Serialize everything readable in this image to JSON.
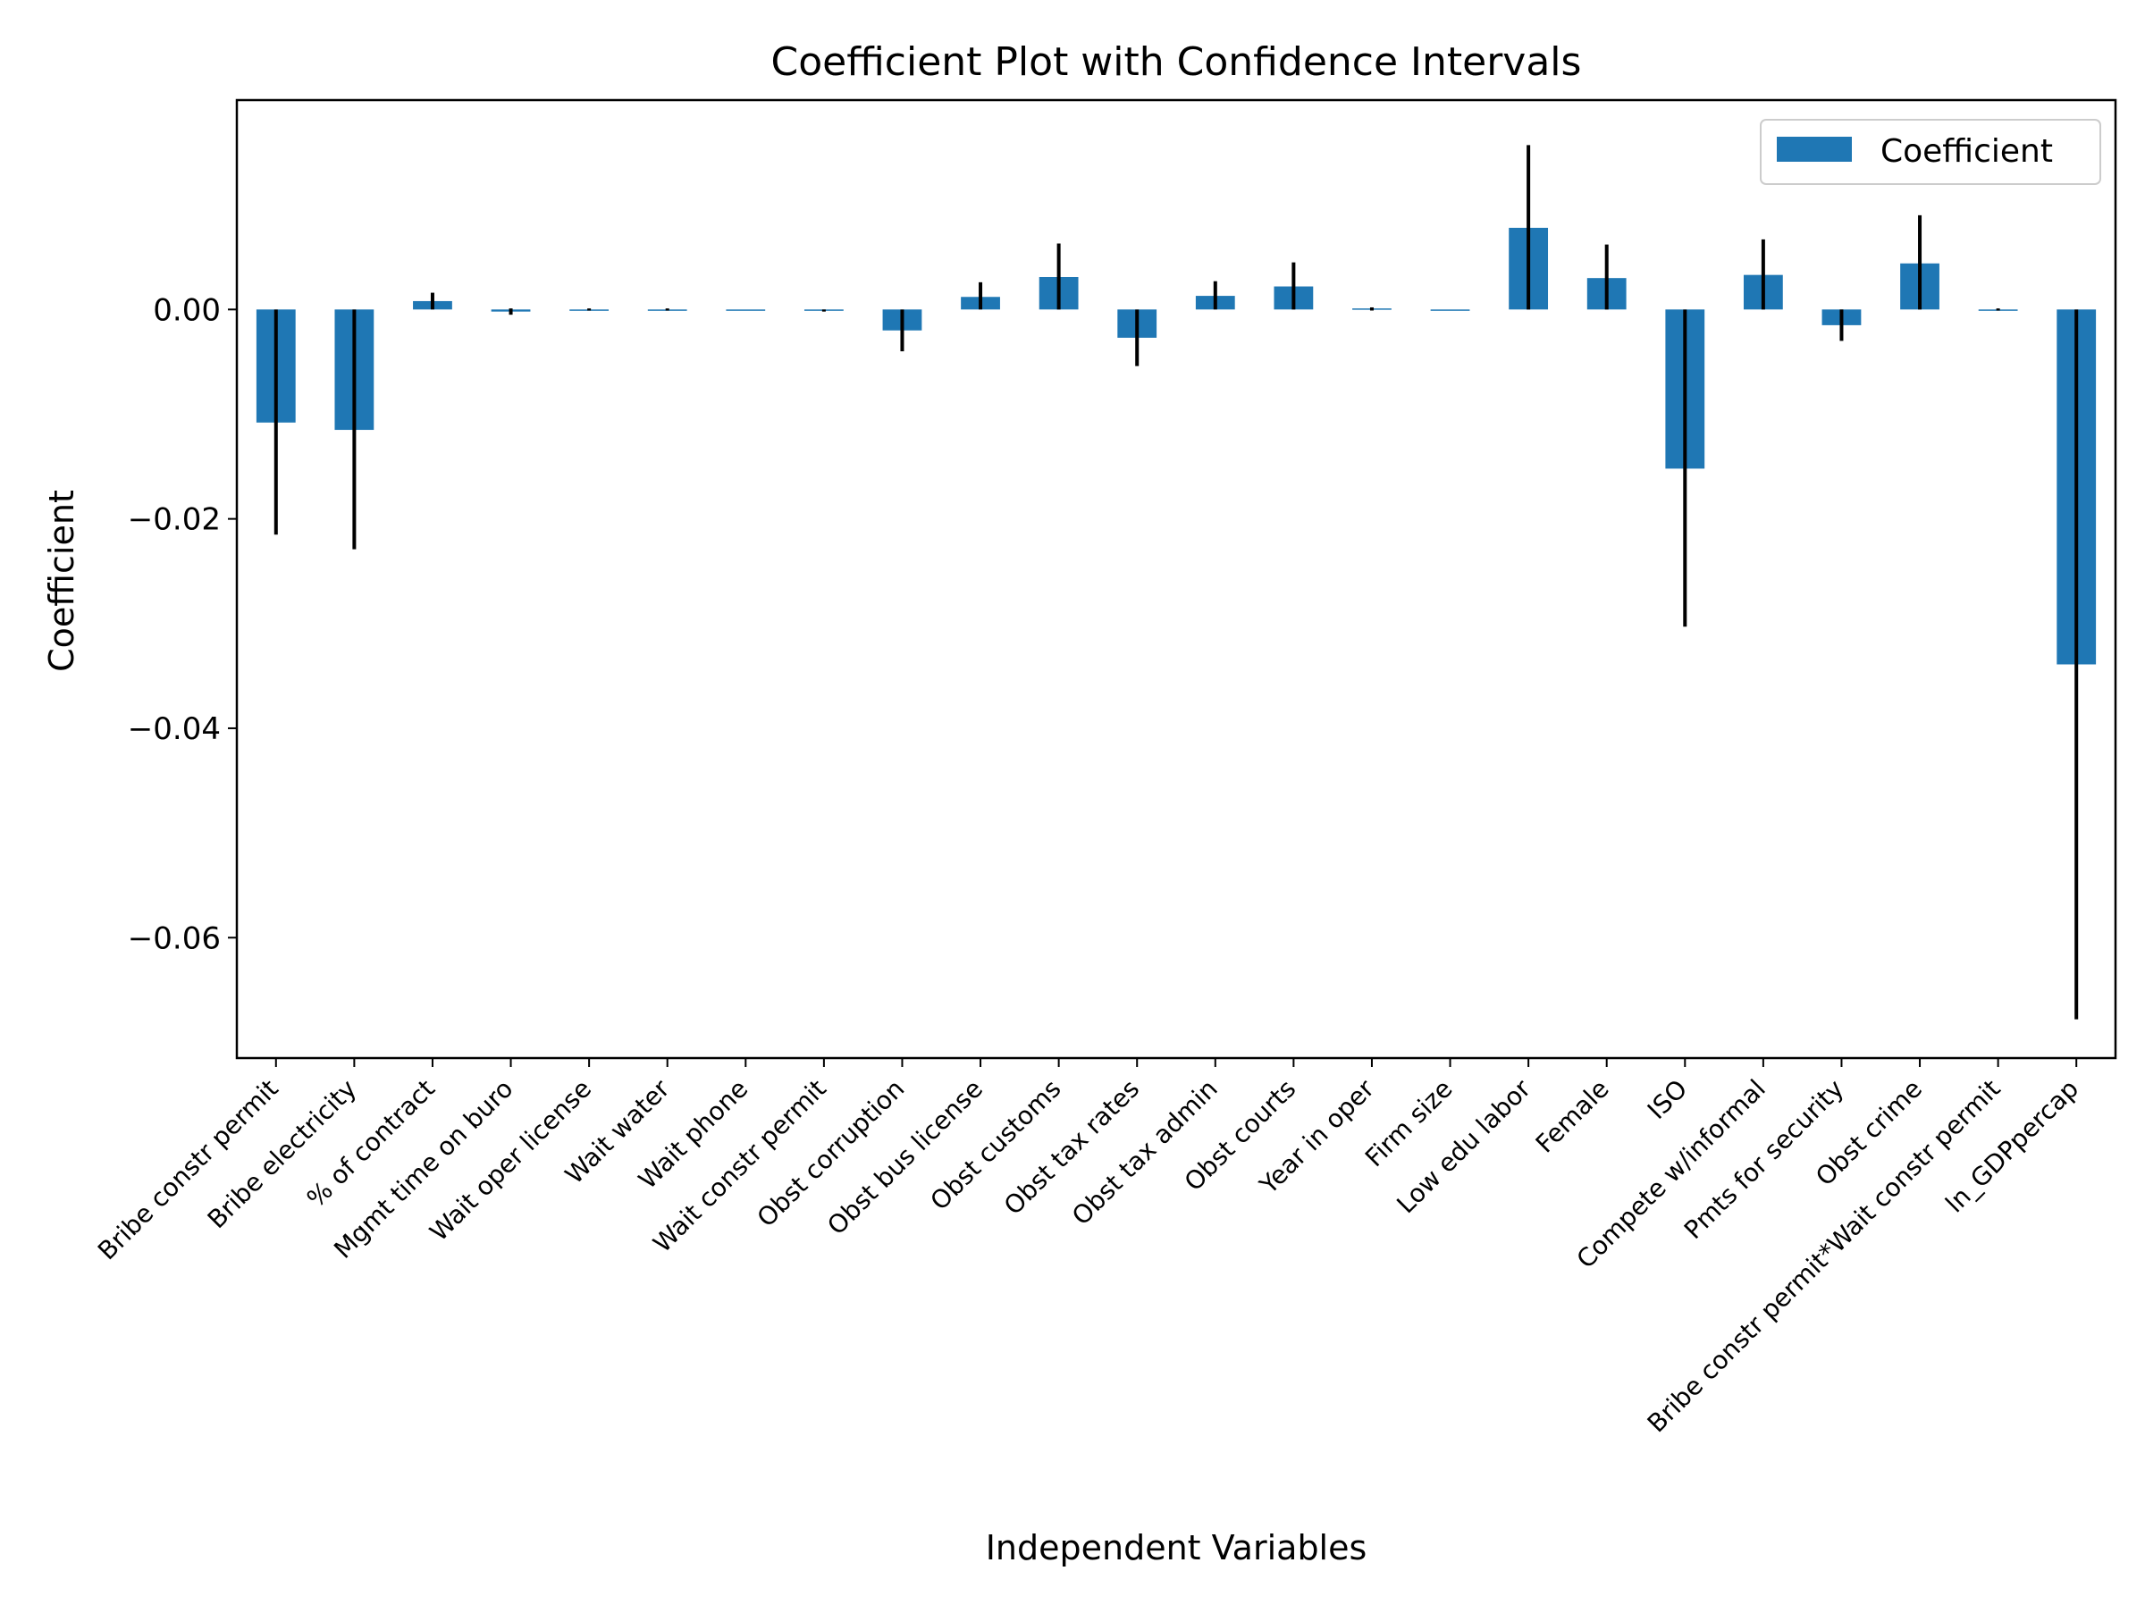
{
  "chart_data": {
    "type": "bar",
    "title": "Coefficient Plot with Confidence Intervals",
    "xlabel": "Independent Variables",
    "ylabel": "Coefficient",
    "ylim": [
      -0.0715,
      0.02
    ],
    "yticks": [
      0.0,
      -0.02,
      -0.04,
      -0.06
    ],
    "ytick_labels": [
      "0.00",
      "−0.02",
      "−0.04",
      "−0.06"
    ],
    "bar_color": "#1f77b4",
    "errorbar_color": "#000000",
    "legend": {
      "location": "top-right",
      "entries": [
        "Coefficient"
      ]
    },
    "categories": [
      "Bribe constr permit",
      "Bribe electricity",
      "% of contract",
      "Mgmt time on buro",
      "Wait oper license",
      "Wait water",
      "Wait phone",
      "Wait constr permit",
      "Obst corruption",
      "Obst bus license",
      "Obst customs",
      "Obst tax rates",
      "Obst tax admin",
      "Obst courts",
      "Year in oper",
      "Firm size",
      "Low edu labor",
      "Female",
      "ISO",
      "Compete w/informal",
      "Pmts for security",
      "Obst crime",
      "Bribe constr permit*Wait constr permit",
      "ln_GDPpercap"
    ],
    "series": [
      {
        "name": "Coefficient",
        "values": [
          -0.0108,
          -0.0115,
          0.0008,
          -0.0002,
          0.0,
          0.0,
          0.0,
          -0.0001,
          -0.002,
          0.0012,
          0.0031,
          -0.0027,
          0.0013,
          0.0022,
          0.0001,
          0.0,
          0.0078,
          0.003,
          -0.0152,
          0.0033,
          -0.0015,
          0.0044,
          0.0,
          -0.0339
        ],
        "ci_lower": [
          -0.0215,
          -0.0229,
          0.0,
          -0.0005,
          -0.0001,
          -0.0001,
          0.0,
          -0.0002,
          -0.004,
          0.0,
          0.0,
          -0.0054,
          0.0,
          0.0,
          -0.0001,
          0.0,
          0.0,
          0.0,
          -0.0303,
          0.0,
          -0.003,
          0.0,
          -0.0001,
          -0.0678
        ],
        "ci_upper": [
          0.0,
          0.0,
          0.0016,
          0.0001,
          0.0001,
          0.0001,
          0.0,
          0.0,
          0.0,
          0.0026,
          0.0063,
          0.0,
          0.0027,
          0.0045,
          0.0002,
          0.0,
          0.0157,
          0.0062,
          0.0,
          0.0067,
          0.0,
          0.009,
          0.0001,
          0.0
        ]
      }
    ]
  }
}
